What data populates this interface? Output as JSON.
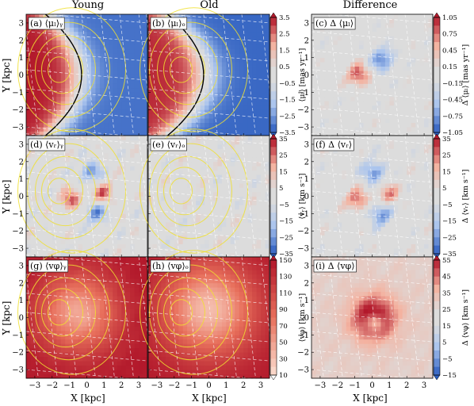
{
  "chart_data": {
    "type": "heatmap",
    "column_titles": [
      "Young",
      "Old",
      "Difference"
    ],
    "xlabel": "X [kpc]",
    "ylabel": "Y [kpc]",
    "xlim": [
      -3.5,
      3.5
    ],
    "ylim": [
      -3.5,
      3.5
    ],
    "xticks": [
      "−3",
      "−2",
      "−1",
      "0",
      "1",
      "2",
      "3"
    ],
    "yticks": [
      "3",
      "2",
      "1",
      "0",
      "−1",
      "−2",
      "−3"
    ],
    "rows": [
      {
        "panels": [
          {
            "label": "(a) ⟨μₗ⟩ᵧ",
            "pattern": "mu_young"
          },
          {
            "label": "(b) ⟨μₗ⟩ₒ",
            "pattern": "mu_old"
          },
          {
            "label": "(c) Δ ⟨μₗ⟩",
            "pattern": "mu_diff"
          }
        ],
        "colorbar_mid": {
          "label": "⟨μₗ⟩ [mas yr⁻¹]",
          "ticks": [
            "3.5",
            "2.5",
            "1.5",
            "0.5",
            "−0.5",
            "−1.5",
            "−2.5",
            "−3.5"
          ],
          "range": [
            -3.5,
            3.5
          ],
          "scale": "rdbu"
        },
        "colorbar_right": {
          "label": "Δ ⟨μₗ⟩ [mas yr⁻¹]",
          "ticks": [
            "1.05",
            "0.75",
            "0.45",
            "0.15",
            "−0.15",
            "−0.45",
            "−0.75",
            "−1.05"
          ],
          "range": [
            -1.05,
            1.05
          ],
          "scale": "rdbu"
        }
      },
      {
        "panels": [
          {
            "label": "(d) ⟨vᵣ⟩ᵧ",
            "pattern": "vr_young"
          },
          {
            "label": "(e) ⟨vᵣ⟩ₒ",
            "pattern": "vr_old"
          },
          {
            "label": "(f) Δ ⟨vᵣ⟩",
            "pattern": "vr_diff"
          }
        ],
        "colorbar_mid": {
          "label": "⟨vᵣ⟩ [km s⁻¹]",
          "ticks": [
            "35",
            "25",
            "15",
            "5",
            "−5",
            "−15",
            "−25",
            "−35"
          ],
          "range": [
            -35,
            35
          ],
          "scale": "rdbu"
        },
        "colorbar_right": {
          "label": "Δ ⟨vᵣ⟩ [km s⁻¹]",
          "ticks": [
            "35",
            "25",
            "15",
            "5",
            "−5",
            "−15",
            "−25",
            "−35"
          ],
          "range": [
            -35,
            35
          ],
          "scale": "rdbu"
        }
      },
      {
        "panels": [
          {
            "label": "(g) ⟨vφ⟩ᵧ",
            "pattern": "vphi_young"
          },
          {
            "label": "(h) ⟨vφ⟩ₒ",
            "pattern": "vphi_old"
          },
          {
            "label": "(i) Δ ⟨vφ⟩",
            "pattern": "vphi_diff"
          }
        ],
        "colorbar_mid": {
          "label": "⟨vφ⟩ [km s⁻¹]",
          "ticks": [
            "150",
            "130",
            "110",
            "90",
            "70",
            "50",
            "30",
            "10"
          ],
          "range": [
            10,
            150
          ],
          "scale": "reds"
        },
        "colorbar_right": {
          "label": "Δ ⟨vφ⟩ [km s⁻¹]",
          "ticks": [
            "55",
            "45",
            "35",
            "25",
            "15",
            "5",
            "−5",
            "−15"
          ],
          "range": [
            -15,
            55
          ],
          "scale": "rdbu"
        }
      }
    ],
    "colors": {
      "contour": "#000000",
      "density_contour": "#f0e030",
      "grid": "#ffffff",
      "red": "#b2182b",
      "blue": "#2c5dbf",
      "neutral": "#dcdcdc"
    }
  }
}
